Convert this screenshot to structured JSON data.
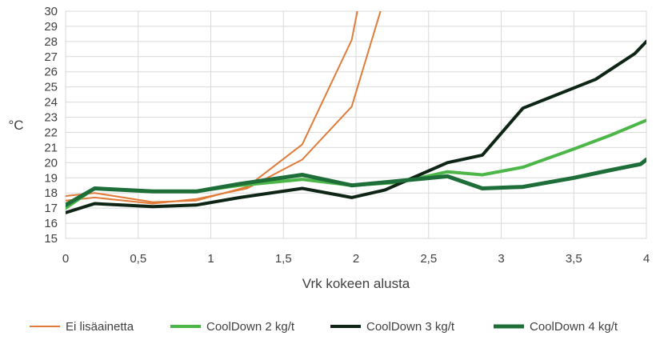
{
  "chart_data": {
    "type": "line",
    "xlabel": "Vrk kokeen alusta",
    "ylabel": "°C",
    "xlim": [
      0,
      4
    ],
    "ylim": [
      15,
      30
    ],
    "x_ticks": [
      "0",
      "0,5",
      "1",
      "1,5",
      "2",
      "2,5",
      "3",
      "3,5",
      "4"
    ],
    "x_tick_values": [
      0,
      0.5,
      1,
      1.5,
      2,
      2.5,
      3,
      3.5,
      4
    ],
    "y_ticks": [
      "15",
      "16",
      "17",
      "18",
      "19",
      "20",
      "21",
      "22",
      "23",
      "24",
      "25",
      "26",
      "27",
      "28",
      "29",
      "30"
    ],
    "y_tick_values": [
      15,
      16,
      17,
      18,
      19,
      20,
      21,
      22,
      23,
      24,
      25,
      26,
      27,
      28,
      29,
      30
    ],
    "grid": true,
    "legend_position": "bottom",
    "series": [
      {
        "name": "Ei lisäainetta",
        "color": "#E07B39",
        "width": 2,
        "legend_group": 0,
        "points": [
          [
            0,
            17.8
          ],
          [
            0.2,
            18.0
          ],
          [
            0.6,
            17.4
          ],
          [
            0.9,
            17.5
          ],
          [
            1.25,
            18.4
          ],
          [
            1.63,
            21.2
          ],
          [
            1.97,
            28.1
          ],
          [
            2.03,
            31.0
          ]
        ]
      },
      {
        "name": "",
        "color": "#E07B39",
        "width": 2,
        "legend_group": 0,
        "points": [
          [
            0,
            17.5
          ],
          [
            0.2,
            17.7
          ],
          [
            0.6,
            17.3
          ],
          [
            0.9,
            17.6
          ],
          [
            1.25,
            18.3
          ],
          [
            1.63,
            20.2
          ],
          [
            1.97,
            23.7
          ],
          [
            2.2,
            31.0
          ]
        ]
      },
      {
        "name": "CoolDown 2 kg/t",
        "color": "#4CB748",
        "width": 4,
        "legend_group": 1,
        "points": [
          [
            0,
            17.0
          ],
          [
            0.2,
            18.3
          ],
          [
            0.6,
            18.1
          ],
          [
            0.9,
            18.1
          ],
          [
            1.2,
            18.5
          ],
          [
            1.63,
            18.9
          ],
          [
            1.97,
            18.5
          ],
          [
            2.3,
            18.7
          ],
          [
            2.63,
            19.4
          ],
          [
            2.87,
            19.2
          ],
          [
            3.15,
            19.7
          ],
          [
            3.5,
            20.9
          ],
          [
            3.75,
            21.8
          ],
          [
            4,
            22.8
          ]
        ]
      },
      {
        "name": "CoolDown 3 kg/t",
        "color": "#0E2414",
        "width": 4,
        "legend_group": 2,
        "points": [
          [
            0,
            16.7
          ],
          [
            0.2,
            17.3
          ],
          [
            0.6,
            17.1
          ],
          [
            0.9,
            17.2
          ],
          [
            1.2,
            17.7
          ],
          [
            1.63,
            18.3
          ],
          [
            1.97,
            17.7
          ],
          [
            2.2,
            18.2
          ],
          [
            2.63,
            20.0
          ],
          [
            2.87,
            20.5
          ],
          [
            3.15,
            23.6
          ],
          [
            3.65,
            25.5
          ],
          [
            3.92,
            27.2
          ],
          [
            4,
            28.0
          ]
        ]
      },
      {
        "name": "CoolDown 4 kg/t",
        "color": "#1E6E3A",
        "width": 5,
        "legend_group": 3,
        "points": [
          [
            0,
            17.2
          ],
          [
            0.2,
            18.3
          ],
          [
            0.6,
            18.1
          ],
          [
            0.9,
            18.1
          ],
          [
            1.2,
            18.6
          ],
          [
            1.63,
            19.2
          ],
          [
            1.97,
            18.5
          ],
          [
            2.3,
            18.8
          ],
          [
            2.63,
            19.1
          ],
          [
            2.87,
            18.3
          ],
          [
            3.15,
            18.4
          ],
          [
            3.5,
            19.0
          ],
          [
            3.8,
            19.6
          ],
          [
            3.96,
            19.9
          ],
          [
            4,
            20.2
          ]
        ]
      }
    ],
    "legend": [
      {
        "name": "Ei lisäainetta",
        "color": "#E07B39",
        "width": 2
      },
      {
        "name": "CoolDown 2 kg/t",
        "color": "#4CB748",
        "width": 4
      },
      {
        "name": "CoolDown 3 kg/t",
        "color": "#0E2414",
        "width": 4
      },
      {
        "name": "CoolDown 4 kg/t",
        "color": "#1E6E3A",
        "width": 5
      }
    ]
  }
}
